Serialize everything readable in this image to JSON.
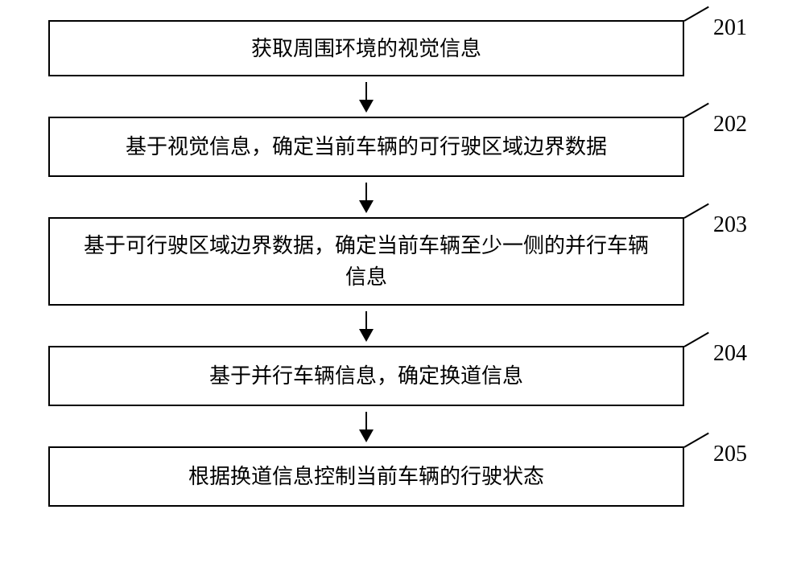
{
  "flowchart": {
    "type": "flowchart",
    "background_color": "#ffffff",
    "box_border_color": "#000000",
    "box_border_width": 2,
    "text_color": "#000000",
    "font_size": 26,
    "label_font_size": 28,
    "arrow_color": "#000000",
    "nodes": [
      {
        "id": "step1",
        "label": "201",
        "text": "获取周围环境的视觉信息"
      },
      {
        "id": "step2",
        "label": "202",
        "text": "基于视觉信息，确定当前车辆的可行驶区域边界数据"
      },
      {
        "id": "step3",
        "label": "203",
        "text": "基于可行驶区域边界数据，确定当前车辆至少一侧的并行车辆信息"
      },
      {
        "id": "step4",
        "label": "204",
        "text": "基于并行车辆信息，确定换道信息"
      },
      {
        "id": "step5",
        "label": "205",
        "text": "根据换道信息控制当前车辆的行驶状态"
      }
    ],
    "edges": [
      {
        "from": "step1",
        "to": "step2"
      },
      {
        "from": "step2",
        "to": "step3"
      },
      {
        "from": "step3",
        "to": "step4"
      },
      {
        "from": "step4",
        "to": "step5"
      }
    ]
  }
}
